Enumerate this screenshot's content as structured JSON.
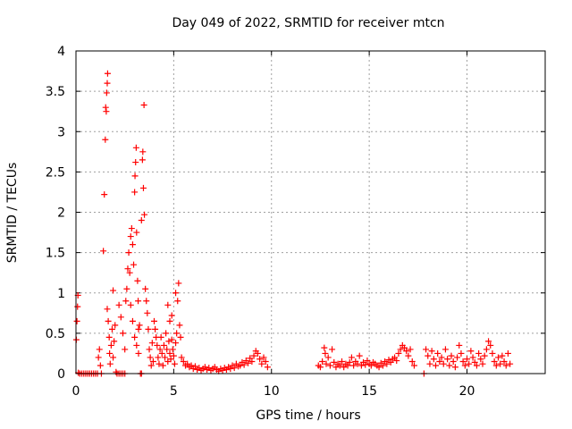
{
  "chart_data": {
    "type": "scatter",
    "title": "Day 049 of 2022, SRMTID for receiver mtcn",
    "xlabel": "GPS time / hours",
    "ylabel": "SRMTID / TECUs",
    "xlim": [
      0,
      24
    ],
    "ylim": [
      0,
      4
    ],
    "xticks": [
      0,
      5,
      10,
      15,
      20
    ],
    "yticks": [
      0,
      0.5,
      1,
      1.5,
      2,
      2.5,
      3,
      3.5,
      4
    ],
    "grid": true,
    "marker": "+",
    "color": "#ff0000",
    "series": [
      {
        "name": "SRMTID",
        "points": [
          [
            0.02,
            0.42
          ],
          [
            0.05,
            0.65
          ],
          [
            0.08,
            0.83
          ],
          [
            0.1,
            0.97
          ],
          [
            0.12,
            0.01
          ],
          [
            0.2,
            0.0
          ],
          [
            0.3,
            0.0
          ],
          [
            0.4,
            0.0
          ],
          [
            0.5,
            0.0
          ],
          [
            0.6,
            0.0
          ],
          [
            0.7,
            0.0
          ],
          [
            0.8,
            0.0
          ],
          [
            0.9,
            0.0
          ],
          [
            1.0,
            0.0
          ],
          [
            1.1,
            0.0
          ],
          [
            1.15,
            0.2
          ],
          [
            1.2,
            0.3
          ],
          [
            1.25,
            0.1
          ],
          [
            1.3,
            0.0
          ],
          [
            1.4,
            1.52
          ],
          [
            1.45,
            2.22
          ],
          [
            1.5,
            2.9
          ],
          [
            1.52,
            3.3
          ],
          [
            1.55,
            3.25
          ],
          [
            1.57,
            3.48
          ],
          [
            1.6,
            3.6
          ],
          [
            1.62,
            3.72
          ],
          [
            1.6,
            0.8
          ],
          [
            1.65,
            0.65
          ],
          [
            1.7,
            0.45
          ],
          [
            1.72,
            0.25
          ],
          [
            1.75,
            0.12
          ],
          [
            1.8,
            0.35
          ],
          [
            1.85,
            0.55
          ],
          [
            1.9,
            0.2
          ],
          [
            1.95,
            0.4
          ],
          [
            1.9,
            1.03
          ],
          [
            2.0,
            0.6
          ],
          [
            2.05,
            0.02
          ],
          [
            2.1,
            0.0
          ],
          [
            2.2,
            0.0
          ],
          [
            2.3,
            0.0
          ],
          [
            2.4,
            0.0
          ],
          [
            2.5,
            0.0
          ],
          [
            2.2,
            0.85
          ],
          [
            2.3,
            0.7
          ],
          [
            2.4,
            0.5
          ],
          [
            2.5,
            0.3
          ],
          [
            2.55,
            0.9
          ],
          [
            2.6,
            1.05
          ],
          [
            2.65,
            1.3
          ],
          [
            2.7,
            1.5
          ],
          [
            2.75,
            1.25
          ],
          [
            2.8,
            1.7
          ],
          [
            2.85,
            1.8
          ],
          [
            2.9,
            1.6
          ],
          [
            2.95,
            1.35
          ],
          [
            3.0,
            2.25
          ],
          [
            3.02,
            2.45
          ],
          [
            3.05,
            2.62
          ],
          [
            3.08,
            2.8
          ],
          [
            3.1,
            1.75
          ],
          [
            3.15,
            1.15
          ],
          [
            3.18,
            0.9
          ],
          [
            3.2,
            0.55
          ],
          [
            2.8,
            0.85
          ],
          [
            2.9,
            0.65
          ],
          [
            3.0,
            0.45
          ],
          [
            3.1,
            0.35
          ],
          [
            3.2,
            0.25
          ],
          [
            3.25,
            0.6
          ],
          [
            3.3,
            0.0
          ],
          [
            3.35,
            0.0
          ],
          [
            3.35,
            1.9
          ],
          [
            3.4,
            2.65
          ],
          [
            3.42,
            2.75
          ],
          [
            3.45,
            2.3
          ],
          [
            3.48,
            3.33
          ],
          [
            3.5,
            1.97
          ],
          [
            3.55,
            1.05
          ],
          [
            3.6,
            0.9
          ],
          [
            3.65,
            0.75
          ],
          [
            3.7,
            0.55
          ],
          [
            3.75,
            0.3
          ],
          [
            3.8,
            0.2
          ],
          [
            3.85,
            0.1
          ],
          [
            3.9,
            0.38
          ],
          [
            3.95,
            0.15
          ],
          [
            4.0,
            0.65
          ],
          [
            4.05,
            0.55
          ],
          [
            4.1,
            0.45
          ],
          [
            4.15,
            0.35
          ],
          [
            4.2,
            0.2
          ],
          [
            4.25,
            0.12
          ],
          [
            4.3,
            0.3
          ],
          [
            4.35,
            0.45
          ],
          [
            4.4,
            0.25
          ],
          [
            4.45,
            0.1
          ],
          [
            4.5,
            0.35
          ],
          [
            4.55,
            0.2
          ],
          [
            4.6,
            0.5
          ],
          [
            4.65,
            0.3
          ],
          [
            4.7,
            0.15
          ],
          [
            4.75,
            0.4
          ],
          [
            4.8,
            0.25
          ],
          [
            4.85,
            0.18
          ],
          [
            4.9,
            0.42
          ],
          [
            4.95,
            0.3
          ],
          [
            5.0,
            0.22
          ],
          [
            5.05,
            0.12
          ],
          [
            5.1,
            0.38
          ],
          [
            5.15,
            0.5
          ],
          [
            4.7,
            0.85
          ],
          [
            4.8,
            0.65
          ],
          [
            4.9,
            0.72
          ],
          [
            5.1,
            1.0
          ],
          [
            5.2,
            0.9
          ],
          [
            5.25,
            1.12
          ],
          [
            5.3,
            0.6
          ],
          [
            5.35,
            0.45
          ],
          [
            5.4,
            0.2
          ],
          [
            5.5,
            0.15
          ],
          [
            5.6,
            0.1
          ],
          [
            5.7,
            0.12
          ],
          [
            5.8,
            0.08
          ],
          [
            5.9,
            0.1
          ],
          [
            6.0,
            0.06
          ],
          [
            6.1,
            0.09
          ],
          [
            6.2,
            0.05
          ],
          [
            6.3,
            0.07
          ],
          [
            6.4,
            0.04
          ],
          [
            6.5,
            0.06
          ],
          [
            6.6,
            0.08
          ],
          [
            6.7,
            0.05
          ],
          [
            6.8,
            0.07
          ],
          [
            6.9,
            0.04
          ],
          [
            7.0,
            0.06
          ],
          [
            7.1,
            0.08
          ],
          [
            7.2,
            0.05
          ],
          [
            7.3,
            0.03
          ],
          [
            7.4,
            0.06
          ],
          [
            7.5,
            0.04
          ],
          [
            7.6,
            0.07
          ],
          [
            7.7,
            0.05
          ],
          [
            7.8,
            0.08
          ],
          [
            7.9,
            0.06
          ],
          [
            8.0,
            0.1
          ],
          [
            8.1,
            0.07
          ],
          [
            8.2,
            0.12
          ],
          [
            8.3,
            0.09
          ],
          [
            8.4,
            0.1
          ],
          [
            8.5,
            0.14
          ],
          [
            8.6,
            0.11
          ],
          [
            8.7,
            0.16
          ],
          [
            8.8,
            0.13
          ],
          [
            8.9,
            0.19
          ],
          [
            9.0,
            0.15
          ],
          [
            9.1,
            0.22
          ],
          [
            9.2,
            0.28
          ],
          [
            9.3,
            0.25
          ],
          [
            9.4,
            0.18
          ],
          [
            9.5,
            0.12
          ],
          [
            9.6,
            0.2
          ],
          [
            9.7,
            0.15
          ],
          [
            9.8,
            0.08
          ],
          [
            12.4,
            0.1
          ],
          [
            12.5,
            0.08
          ],
          [
            12.6,
            0.15
          ],
          [
            12.7,
            0.32
          ],
          [
            12.75,
            0.25
          ],
          [
            12.8,
            0.12
          ],
          [
            12.9,
            0.2
          ],
          [
            13.0,
            0.1
          ],
          [
            13.1,
            0.3
          ],
          [
            13.2,
            0.14
          ],
          [
            13.3,
            0.08
          ],
          [
            13.4,
            0.12
          ],
          [
            13.5,
            0.1
          ],
          [
            13.6,
            0.15
          ],
          [
            13.7,
            0.08
          ],
          [
            13.8,
            0.12
          ],
          [
            13.9,
            0.1
          ],
          [
            14.0,
            0.14
          ],
          [
            14.1,
            0.2
          ],
          [
            14.2,
            0.1
          ],
          [
            14.3,
            0.15
          ],
          [
            14.4,
            0.12
          ],
          [
            14.5,
            0.22
          ],
          [
            14.6,
            0.1
          ],
          [
            14.7,
            0.14
          ],
          [
            14.8,
            0.11
          ],
          [
            14.9,
            0.16
          ],
          [
            15.0,
            0.12
          ],
          [
            15.1,
            0.1
          ],
          [
            15.2,
            0.14
          ],
          [
            15.3,
            0.12
          ],
          [
            15.4,
            0.1
          ],
          [
            15.5,
            0.08
          ],
          [
            15.6,
            0.13
          ],
          [
            15.7,
            0.1
          ],
          [
            15.8,
            0.15
          ],
          [
            15.9,
            0.12
          ],
          [
            16.0,
            0.17
          ],
          [
            16.1,
            0.14
          ],
          [
            16.2,
            0.18
          ],
          [
            16.3,
            0.2
          ],
          [
            16.4,
            0.16
          ],
          [
            16.5,
            0.25
          ],
          [
            16.6,
            0.3
          ],
          [
            16.7,
            0.35
          ],
          [
            16.8,
            0.32
          ],
          [
            16.9,
            0.28
          ],
          [
            17.0,
            0.22
          ],
          [
            17.1,
            0.3
          ],
          [
            17.2,
            0.15
          ],
          [
            17.3,
            0.1
          ],
          [
            17.8,
            0.0
          ],
          [
            17.9,
            0.3
          ],
          [
            18.0,
            0.22
          ],
          [
            18.1,
            0.12
          ],
          [
            18.2,
            0.28
          ],
          [
            18.3,
            0.18
          ],
          [
            18.4,
            0.1
          ],
          [
            18.5,
            0.25
          ],
          [
            18.6,
            0.15
          ],
          [
            18.7,
            0.2
          ],
          [
            18.8,
            0.12
          ],
          [
            18.9,
            0.3
          ],
          [
            19.0,
            0.18
          ],
          [
            19.1,
            0.1
          ],
          [
            19.2,
            0.22
          ],
          [
            19.3,
            0.15
          ],
          [
            19.4,
            0.08
          ],
          [
            19.5,
            0.2
          ],
          [
            19.6,
            0.35
          ],
          [
            19.7,
            0.25
          ],
          [
            19.8,
            0.15
          ],
          [
            19.9,
            0.1
          ],
          [
            20.0,
            0.18
          ],
          [
            20.1,
            0.12
          ],
          [
            20.2,
            0.28
          ],
          [
            20.3,
            0.2
          ],
          [
            20.4,
            0.14
          ],
          [
            20.5,
            0.1
          ],
          [
            20.6,
            0.25
          ],
          [
            20.7,
            0.18
          ],
          [
            20.8,
            0.12
          ],
          [
            20.9,
            0.22
          ],
          [
            21.0,
            0.3
          ],
          [
            21.1,
            0.4
          ],
          [
            21.2,
            0.35
          ],
          [
            21.3,
            0.25
          ],
          [
            21.4,
            0.15
          ],
          [
            21.5,
            0.1
          ],
          [
            21.6,
            0.2
          ],
          [
            21.7,
            0.12
          ],
          [
            21.8,
            0.22
          ],
          [
            21.9,
            0.15
          ],
          [
            22.0,
            0.1
          ],
          [
            22.1,
            0.25
          ],
          [
            22.2,
            0.12
          ]
        ]
      }
    ]
  }
}
